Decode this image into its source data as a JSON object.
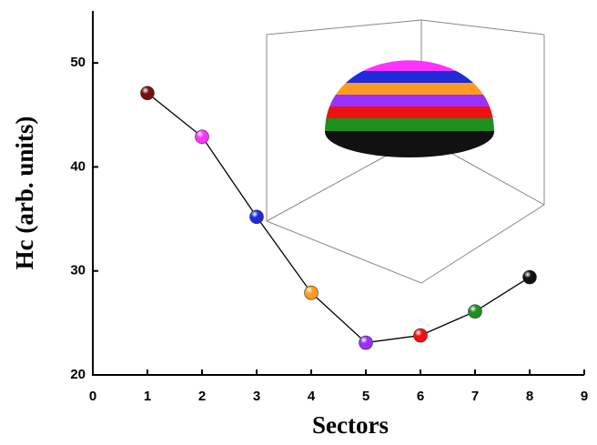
{
  "chart_data": {
    "type": "line",
    "x_label": "Sectors",
    "y_label": "Hc (arb. units)",
    "x": [
      1,
      2,
      3,
      4,
      5,
      6,
      7,
      8
    ],
    "series": [
      {
        "color": "#000000",
        "values": [
          47.1,
          42.9,
          35.2,
          27.9,
          23.1,
          23.8,
          26.1,
          29.4
        ],
        "point_colors": [
          "#7a0f0f",
          "#ff33ff",
          "#1f2bd9",
          "#ff9a22",
          "#9b30ff",
          "#ee1111",
          "#1f8f1f",
          "#111111"
        ]
      }
    ],
    "xlim": [
      0,
      9
    ],
    "xticks": [
      0,
      1,
      2,
      3,
      4,
      5,
      6,
      7,
      8,
      9
    ],
    "ylim": [
      20,
      55
    ],
    "yticks": [
      20,
      30,
      40,
      50
    ]
  }
}
